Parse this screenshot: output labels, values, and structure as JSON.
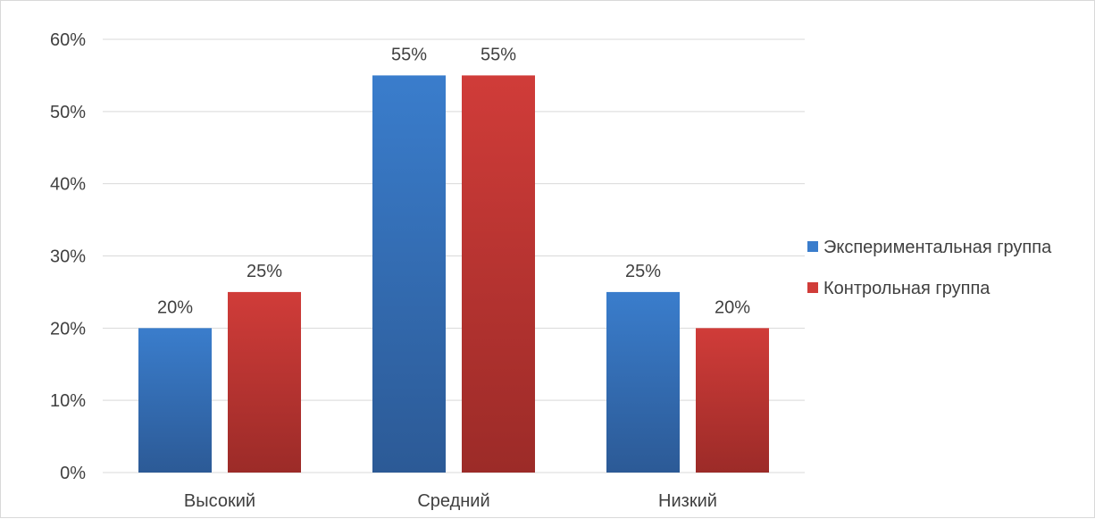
{
  "chart_data": {
    "type": "bar",
    "categories": [
      "Высокий",
      "Средний",
      "Низкий"
    ],
    "series": [
      {
        "name": "Экспериментальная группа",
        "values": [
          20,
          55,
          25
        ],
        "labels": [
          "20%",
          "55%",
          "25%"
        ]
      },
      {
        "name": "Контрольная группа",
        "values": [
          25,
          55,
          20
        ],
        "labels": [
          "25%",
          "55%",
          "20%"
        ]
      }
    ],
    "y_ticks": [
      "0%",
      "10%",
      "20%",
      "30%",
      "40%",
      "50%",
      "60%"
    ],
    "ylim": [
      0,
      60
    ],
    "grid": true,
    "legend_position": "right",
    "colors": {
      "series_0_top": "#3a7dcc",
      "series_0_bottom": "#2c5a96",
      "series_1_top": "#d03c39",
      "series_1_bottom": "#9c2b28",
      "grid": "#d9d9d9",
      "text": "#404040"
    }
  }
}
